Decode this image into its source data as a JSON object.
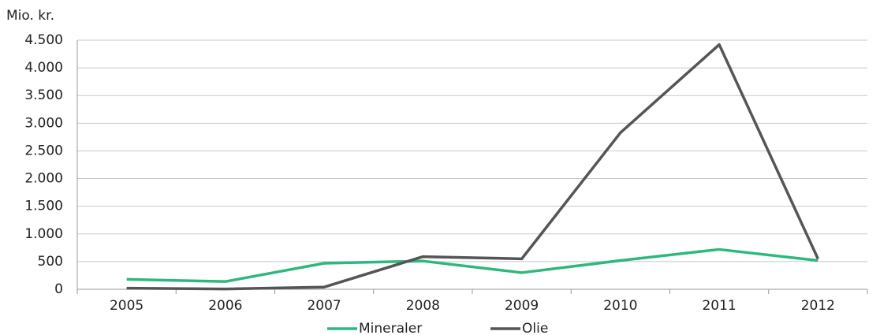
{
  "chart_data": {
    "type": "line",
    "y_label": "Mio. kr.",
    "categories": [
      "2005",
      "2006",
      "2007",
      "2008",
      "2009",
      "2010",
      "2011",
      "2012"
    ],
    "series": [
      {
        "name": "Mineraler",
        "color": "#2db87d",
        "values": [
          180,
          140,
          470,
          510,
          300,
          520,
          720,
          520
        ]
      },
      {
        "name": "Olie",
        "color": "#555555",
        "values": [
          20,
          5,
          40,
          590,
          550,
          2830,
          4420,
          550
        ]
      }
    ],
    "ylim": [
      0,
      4500
    ],
    "yticks": [
      0,
      500,
      {
        "value": 1000,
        "label": "1.000"
      },
      {
        "value": 1500,
        "label": "1.500"
      },
      {
        "value": 2000,
        "label": "2.000"
      },
      {
        "value": 2500,
        "label": "2.500"
      },
      {
        "value": 3000,
        "label": "3.000"
      },
      {
        "value": 3500,
        "label": "3.500"
      },
      {
        "value": 4000,
        "label": "4.000"
      },
      {
        "value": 4500,
        "label": "4.500"
      }
    ],
    "grid": true
  }
}
